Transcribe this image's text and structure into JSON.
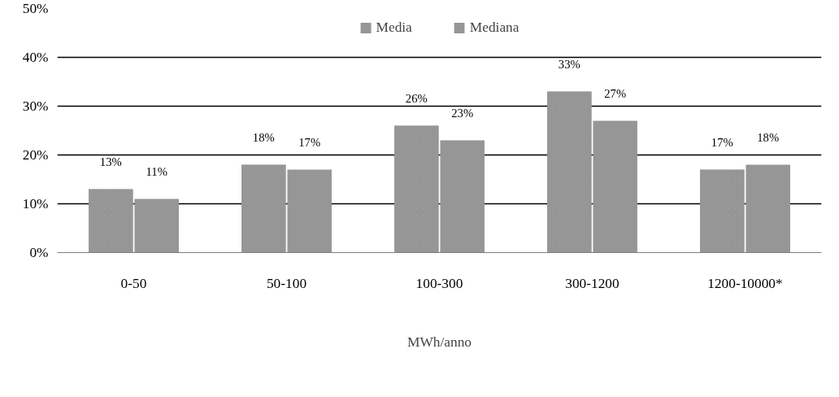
{
  "chart_data": {
    "type": "bar",
    "xlabel": "MWh/anno",
    "categories": [
      "0-50",
      "50-100",
      "100-300",
      "300-1200",
      "1200-10000*"
    ],
    "series": [
      {
        "name": "Media",
        "color": "#969696",
        "values": [
          13,
          18,
          26,
          33,
          17
        ],
        "value_labels": [
          "13%",
          "18%",
          "26%",
          "33%",
          "17%"
        ]
      },
      {
        "name": "Mediana",
        "color": "#969696",
        "values": [
          11,
          17,
          23,
          27,
          18
        ],
        "value_labels": [
          "11%",
          "17%",
          "23%",
          "27%",
          "18%"
        ]
      }
    ],
    "ylim": [
      0,
      50
    ],
    "yticks": [
      {
        "value": 0,
        "label": "0%"
      },
      {
        "value": 10,
        "label": "10%"
      },
      {
        "value": 20,
        "label": "20%"
      },
      {
        "value": 30,
        "label": "30%"
      },
      {
        "value": 40,
        "label": "40%"
      },
      {
        "value": 50,
        "label": "50%"
      }
    ],
    "grid": "y",
    "legend": "top"
  }
}
